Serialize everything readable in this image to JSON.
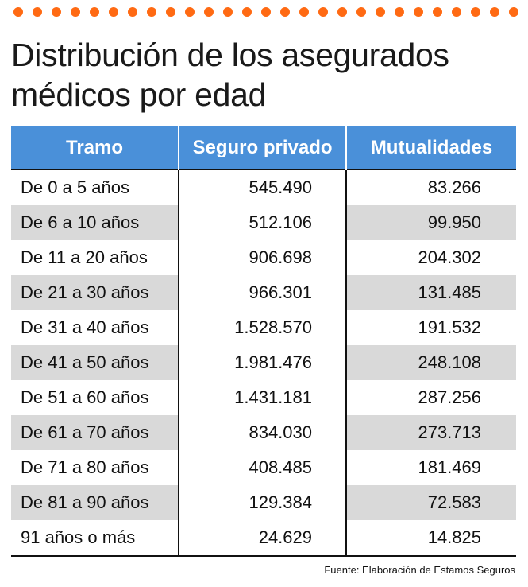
{
  "colors": {
    "accent": "#ff6a13",
    "header_bg": "#4a90d9",
    "stripe": "#d9d9d9",
    "text": "#111111"
  },
  "title": "Distribución de los asegurados médicos por edad",
  "source": "Fuente: Elaboración de Estamos Seguros",
  "chart_data": {
    "type": "table",
    "title": "Distribución de los asegurados médicos por edad",
    "columns": [
      "Tramo",
      "Seguro privado",
      "Mutualidades"
    ],
    "rows": [
      [
        "De 0 a 5 años",
        "545.490",
        "83.266"
      ],
      [
        "De 6 a 10 años",
        "512.106",
        "99.950"
      ],
      [
        "De 11 a 20 años",
        "906.698",
        "204.302"
      ],
      [
        "De 21 a 30 años",
        "966.301",
        "131.485"
      ],
      [
        "De 31 a 40 años",
        "1.528.570",
        "191.532"
      ],
      [
        "De 41 a 50 años",
        "1.981.476",
        "248.108"
      ],
      [
        "De 51 a 60 años",
        "1.431.181",
        "287.256"
      ],
      [
        "De 61 a 70 años",
        "834.030",
        "273.713"
      ],
      [
        "De 71 a 80 años",
        "408.485",
        "181.469"
      ],
      [
        "De 81 a 90 años",
        "129.384",
        "72.583"
      ],
      [
        "91 años o más",
        "24.629",
        "14.825"
      ]
    ]
  }
}
